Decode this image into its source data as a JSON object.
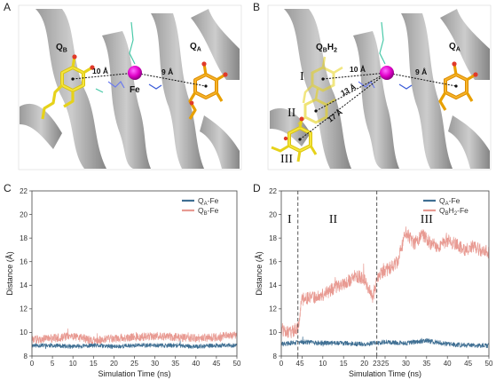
{
  "panels": {
    "A": {
      "letter": "A",
      "labels": {
        "qb": "Q",
        "qb_sub": "B",
        "qa": "Q",
        "qa_sub": "A",
        "fe": "Fe"
      },
      "distances": [
        "10 Å",
        "9 Å"
      ]
    },
    "B": {
      "letter": "B",
      "labels": {
        "qb": "Q",
        "qb_sub": "B",
        "qb_h": "H",
        "qb_h_sub": "2",
        "qa": "Q",
        "qa_sub": "A"
      },
      "distances": [
        "10 Å",
        "9 Å",
        "13 Å",
        "17 Å"
      ],
      "roman": [
        "I",
        "II",
        "III"
      ]
    }
  },
  "colors": {
    "qa_series": "#3f6f93",
    "qb_series": "#e89a92",
    "protein": "#7e7e7e",
    "iron": "#e000c8",
    "quinone_a": "#e8a000",
    "quinone_b": "#e6d21a"
  },
  "chart_data": [
    {
      "panel": "C",
      "type": "line",
      "xlabel": "Simulation Time (ns)",
      "ylabel": "Distance (Å)",
      "xlim": [
        0,
        50
      ],
      "ylim": [
        8,
        22
      ],
      "xticks": [
        "0",
        "5",
        "10",
        "15",
        "20",
        "25",
        "30",
        "35",
        "40",
        "45",
        "50"
      ],
      "yticks": [
        "8",
        "10",
        "12",
        "14",
        "16",
        "18",
        "20",
        "22"
      ],
      "grid": false,
      "legend_position": "top-right",
      "legend": [
        {
          "label": "Q",
          "sub": "A",
          "suffix": "-Fe"
        },
        {
          "label": "Q",
          "sub": "B",
          "suffix": "-Fe"
        }
      ],
      "series": [
        {
          "name": "QA-Fe",
          "x": [
            0,
            5,
            10,
            15,
            20,
            25,
            30,
            35,
            40,
            45,
            50
          ],
          "y": [
            8.9,
            8.9,
            8.8,
            8.9,
            8.8,
            8.9,
            8.9,
            8.9,
            8.8,
            8.9,
            8.9
          ]
        },
        {
          "name": "QB-Fe",
          "x": [
            0,
            5,
            10,
            15,
            20,
            25,
            30,
            35,
            40,
            45,
            50
          ],
          "y": [
            9.4,
            9.5,
            9.7,
            9.3,
            9.5,
            9.6,
            9.7,
            9.6,
            9.5,
            9.6,
            9.8
          ]
        }
      ]
    },
    {
      "panel": "D",
      "type": "line",
      "xlabel": "Simulation Time (ns)",
      "ylabel": "Distance (Å)",
      "xlim": [
        0,
        50
      ],
      "ylim": [
        8,
        22
      ],
      "xticks": [
        "0",
        "5",
        "10",
        "15",
        "20",
        "25",
        "30",
        "35",
        "40",
        "45",
        "50"
      ],
      "extra_xticks": [
        "4",
        "23"
      ],
      "yticks": [
        "8",
        "10",
        "12",
        "14",
        "16",
        "18",
        "20",
        "22"
      ],
      "grid": false,
      "legend_position": "top-left",
      "legend": [
        {
          "label": "Q",
          "sub": "A",
          "suffix": "-Fe"
        },
        {
          "label": "Q",
          "sub": "B",
          "suffix": "H",
          "suffix_sub": "2",
          "suffix2": "-Fe"
        }
      ],
      "vlines": [
        4,
        23
      ],
      "roman_labels": [
        {
          "text": "I",
          "x": 2,
          "y": 19.3
        },
        {
          "text": "II",
          "x": 12.5,
          "y": 19.3
        },
        {
          "text": "III",
          "x": 35,
          "y": 19.3
        }
      ],
      "series": [
        {
          "name": "QA-Fe",
          "x": [
            0,
            5,
            10,
            15,
            20,
            25,
            30,
            35,
            40,
            45,
            50
          ],
          "y": [
            9.0,
            9.2,
            9.1,
            9.1,
            9.0,
            9.2,
            9.1,
            9.3,
            9.0,
            8.9,
            8.9
          ]
        },
        {
          "name": "QBH2-Fe",
          "x": [
            0,
            2,
            4,
            5,
            8,
            10,
            12,
            14,
            16,
            18,
            20,
            22,
            23,
            24,
            26,
            28,
            30,
            32,
            34,
            36,
            38,
            40,
            42,
            44,
            46,
            48,
            50
          ],
          "y": [
            10.3,
            10.0,
            10.4,
            12.8,
            13.0,
            13.2,
            13.6,
            14.0,
            14.3,
            14.8,
            14.5,
            13.0,
            14.3,
            15.0,
            15.4,
            16.0,
            18.5,
            17.5,
            18.3,
            17.5,
            17.3,
            17.8,
            17.5,
            17.0,
            17.3,
            17.0,
            16.8
          ]
        }
      ]
    }
  ]
}
